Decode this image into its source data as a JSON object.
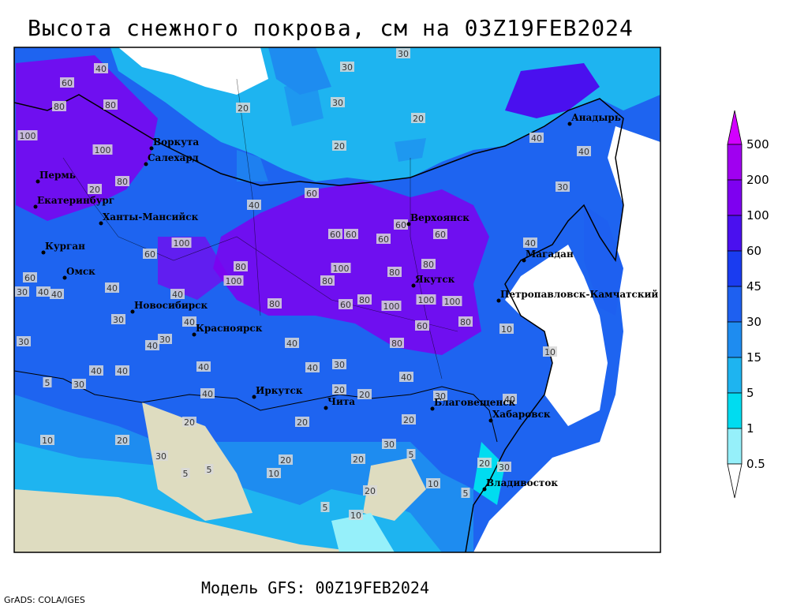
{
  "title": "Высота снежного покрова, см на 03Z19FEB2024",
  "model": "Модель GFS: 00Z19FEB2024",
  "credit": "GrADS: COLA/IGES",
  "cities": [
    "Воркута",
    "Салехард",
    "Пермь",
    "Екатеринбург",
    "Ханты-Мансийск",
    "Курган",
    "Омск",
    "Новосибирск",
    "Красноярск",
    "Иркутск",
    "Чита",
    "Благовещенск",
    "Хабаровск",
    "Владивосток",
    "Якутск",
    "Верхоянск",
    "Магадан",
    "Петропавловск-Камчатский",
    "Анадырь"
  ],
  "contour_labels": [
    30,
    30,
    30,
    20,
    20,
    20,
    40,
    60,
    80,
    80,
    100,
    100,
    80,
    20,
    40,
    60,
    60,
    60,
    60,
    60,
    60,
    60,
    100,
    80,
    100,
    100,
    80,
    80,
    80,
    100,
    100,
    100,
    80,
    60,
    80,
    60,
    80,
    80,
    40,
    40,
    40,
    30,
    10,
    10,
    40,
    40,
    40,
    30,
    40,
    40,
    40,
    20,
    20,
    30,
    20,
    20,
    20,
    20,
    10,
    30,
    5,
    30,
    40,
    40,
    30,
    5,
    5,
    10,
    20,
    30,
    5,
    20,
    20,
    10,
    5,
    10,
    20,
    30,
    5,
    60,
    30,
    40,
    40,
    30,
    40,
    40,
    40,
    30,
    40
  ],
  "legend": {
    "levels": [
      500,
      200,
      100,
      60,
      45,
      30,
      15,
      5,
      1,
      0.5
    ],
    "colors": [
      "#d200ff",
      "#a000f0",
      "#7e00f0",
      "#4a10ef",
      "#1a3cf0",
      "#1e60f0",
      "#1e8cf0",
      "#1eb4f0",
      "#00dcf0",
      "#96f0fa",
      "#ffffff"
    ]
  }
}
